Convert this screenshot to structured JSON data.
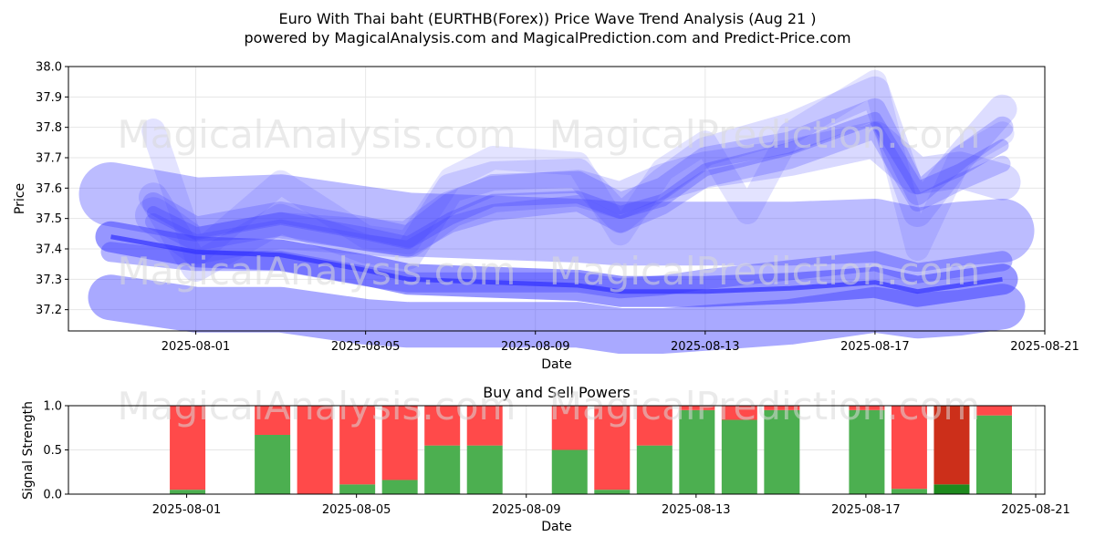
{
  "header": {
    "title": "Euro With Thai baht (EURTHB(Forex)) Price Wave Trend Analysis (Aug 21 )",
    "subtitle": "powered by MagicalAnalysis.com and MagicalPrediction.com and Predict-Price.com"
  },
  "watermarks": [
    "MagicalAnalysis.com",
    "MagicalPrediction.com"
  ],
  "chart_data": [
    {
      "type": "line",
      "title": "",
      "xlabel": "Date",
      "ylabel": "Price",
      "xlim": [
        "2025-07-29",
        "2025-08-21"
      ],
      "ylim": [
        37.13,
        38.0
      ],
      "x_ticks": [
        "2025-08-01",
        "2025-08-05",
        "2025-08-09",
        "2025-08-13",
        "2025-08-17",
        "2025-08-21"
      ],
      "y_ticks": [
        37.2,
        37.3,
        37.4,
        37.5,
        37.6,
        37.7,
        37.8,
        37.9,
        38.0
      ],
      "grid": true,
      "colors": {
        "wave": "#4040ff"
      },
      "series": [
        {
          "x": [
            "2025-07-30",
            "2025-08-01",
            "2025-08-03",
            "2025-08-05",
            "2025-08-06",
            "2025-08-10",
            "2025-08-11",
            "2025-08-12",
            "2025-08-13",
            "2025-08-15",
            "2025-08-17",
            "2025-08-18",
            "2025-08-19",
            "2025-08-20"
          ],
          "values": [
            37.24,
            37.2,
            37.2,
            37.16,
            37.15,
            37.15,
            37.13,
            37.13,
            37.14,
            37.16,
            37.2,
            37.18,
            37.19,
            37.21
          ]
        },
        {
          "x": [
            "2025-07-30",
            "2025-08-01",
            "2025-08-03",
            "2025-08-05",
            "2025-08-06",
            "2025-08-10",
            "2025-08-11",
            "2025-08-12",
            "2025-08-13",
            "2025-08-15",
            "2025-08-17",
            "2025-08-18",
            "2025-08-19",
            "2025-08-20"
          ],
          "values": [
            37.44,
            37.39,
            37.38,
            37.33,
            37.3,
            37.28,
            37.26,
            37.26,
            37.26,
            37.27,
            37.29,
            37.26,
            37.28,
            37.3
          ]
        },
        {
          "x": [
            "2025-07-30",
            "2025-08-01",
            "2025-08-03",
            "2025-08-05",
            "2025-08-06",
            "2025-08-10",
            "2025-08-11",
            "2025-08-12",
            "2025-08-13",
            "2025-08-15",
            "2025-08-17",
            "2025-08-18",
            "2025-08-19",
            "2025-08-20"
          ],
          "values": [
            37.39,
            37.36,
            37.36,
            37.31,
            37.29,
            37.29,
            37.27,
            37.28,
            37.3,
            37.33,
            37.36,
            37.32,
            37.34,
            37.36
          ]
        },
        {
          "x": [
            "2025-07-30",
            "2025-08-01",
            "2025-08-03",
            "2025-08-05",
            "2025-08-06",
            "2025-08-10",
            "2025-08-11",
            "2025-08-12",
            "2025-08-13",
            "2025-08-15",
            "2025-08-17",
            "2025-08-18",
            "2025-08-19",
            "2025-08-20"
          ],
          "values": [
            37.58,
            37.53,
            37.54,
            37.5,
            37.48,
            37.46,
            37.45,
            37.45,
            37.45,
            37.45,
            37.46,
            37.43,
            37.45,
            37.46
          ]
        },
        {
          "x": [
            "2025-07-31",
            "2025-08-01",
            "2025-08-03",
            "2025-08-05",
            "2025-08-06",
            "2025-08-07",
            "2025-08-08",
            "2025-08-10",
            "2025-08-11",
            "2025-08-12",
            "2025-08-13",
            "2025-08-15",
            "2025-08-17",
            "2025-08-18",
            "2025-08-19",
            "2025-08-20"
          ],
          "values": [
            37.52,
            37.45,
            37.5,
            37.45,
            37.42,
            37.5,
            37.56,
            37.57,
            37.52,
            37.56,
            37.66,
            37.73,
            37.83,
            37.6,
            37.66,
            37.74
          ]
        },
        {
          "x": [
            "2025-07-31",
            "2025-08-01",
            "2025-08-03",
            "2025-08-05",
            "2025-08-06",
            "2025-08-07",
            "2025-08-08",
            "2025-08-10",
            "2025-08-11",
            "2025-08-12",
            "2025-08-13",
            "2025-08-15",
            "2025-08-17",
            "2025-08-18",
            "2025-08-19",
            "2025-08-20"
          ],
          "values": [
            37.55,
            37.47,
            37.52,
            37.47,
            37.44,
            37.55,
            37.61,
            37.62,
            37.55,
            37.6,
            37.7,
            37.75,
            37.86,
            37.58,
            37.7,
            37.8
          ]
        },
        {
          "x": [
            "2025-07-31",
            "2025-08-01",
            "2025-08-03",
            "2025-08-05",
            "2025-08-06",
            "2025-08-07",
            "2025-08-08",
            "2025-08-10",
            "2025-08-11",
            "2025-08-12",
            "2025-08-13",
            "2025-08-15",
            "2025-08-17",
            "2025-08-18",
            "2025-08-19",
            "2025-08-20"
          ],
          "values": [
            37.49,
            37.42,
            37.47,
            37.42,
            37.4,
            37.48,
            37.52,
            37.55,
            37.48,
            37.54,
            37.63,
            37.69,
            37.79,
            37.55,
            37.62,
            37.68
          ]
        },
        {
          "x": [
            "2025-07-31",
            "2025-08-01",
            "2025-08-03",
            "2025-08-05",
            "2025-08-06",
            "2025-08-07",
            "2025-08-08",
            "2025-08-10",
            "2025-08-11",
            "2025-08-12",
            "2025-08-13",
            "2025-08-14",
            "2025-08-15",
            "2025-08-17",
            "2025-08-18",
            "2025-08-19",
            "2025-08-20"
          ],
          "values": [
            37.79,
            37.38,
            37.62,
            37.44,
            37.42,
            37.63,
            37.7,
            37.68,
            37.45,
            37.66,
            37.75,
            37.52,
            37.78,
            37.95,
            37.4,
            37.7,
            37.78
          ]
        },
        {
          "x": [
            "2025-07-31",
            "2025-08-01",
            "2025-08-03",
            "2025-08-05",
            "2025-08-06",
            "2025-08-07",
            "2025-08-08",
            "2025-08-10",
            "2025-08-11",
            "2025-08-12",
            "2025-08-13",
            "2025-08-15",
            "2025-08-17",
            "2025-08-18",
            "2025-08-19",
            "2025-08-20"
          ],
          "values": [
            37.57,
            37.34,
            37.5,
            37.4,
            37.38,
            37.6,
            37.64,
            37.65,
            37.5,
            37.62,
            37.72,
            37.8,
            37.92,
            37.52,
            37.7,
            37.86
          ]
        },
        {
          "x": [
            "2025-07-31",
            "2025-08-01",
            "2025-08-03",
            "2025-08-05",
            "2025-08-06",
            "2025-08-07",
            "2025-08-08",
            "2025-08-10",
            "2025-08-11",
            "2025-08-12",
            "2025-08-13",
            "2025-08-15",
            "2025-08-17",
            "2025-08-18",
            "2025-08-19",
            "2025-08-20"
          ],
          "values": [
            37.51,
            37.41,
            37.46,
            37.44,
            37.43,
            37.53,
            37.58,
            37.6,
            37.56,
            37.62,
            37.66,
            37.7,
            37.76,
            37.64,
            37.66,
            37.62
          ]
        }
      ]
    },
    {
      "type": "bar",
      "title": "Buy and Sell Powers",
      "xlabel": "Date",
      "ylabel": "Signal Strength",
      "ylim": [
        0,
        1.0
      ],
      "y_ticks": [
        0.0,
        0.5,
        1.0
      ],
      "x_ticks": [
        "2025-08-01",
        "2025-08-05",
        "2025-08-09",
        "2025-08-13",
        "2025-08-17",
        "2025-08-21"
      ],
      "grid": true,
      "colors": {
        "buy": "#4caf50",
        "sell": "#ff4a4a",
        "buy_strong": "#1e8a1e",
        "sell_strong": "#cc2f1a"
      },
      "categories": [
        "2025-08-01",
        "2025-08-03",
        "2025-08-04",
        "2025-08-05",
        "2025-08-06",
        "2025-08-07",
        "2025-08-08",
        "2025-08-10",
        "2025-08-11",
        "2025-08-12",
        "2025-08-13",
        "2025-08-14",
        "2025-08-15",
        "2025-08-17",
        "2025-08-18",
        "2025-08-19",
        "2025-08-20"
      ],
      "series": [
        {
          "name": "buy",
          "values": [
            0.05,
            0.67,
            0.0,
            0.11,
            0.16,
            0.55,
            0.55,
            0.5,
            0.05,
            0.55,
            0.95,
            0.84,
            0.95,
            0.95,
            0.06,
            0.11,
            0.89
          ]
        },
        {
          "name": "sell",
          "values": [
            0.95,
            0.33,
            1.0,
            0.89,
            0.84,
            0.45,
            0.45,
            0.5,
            0.95,
            0.45,
            0.05,
            0.16,
            0.05,
            0.05,
            0.94,
            0.89,
            0.11
          ]
        }
      ],
      "strong": [
        false,
        false,
        false,
        false,
        false,
        false,
        false,
        false,
        false,
        false,
        false,
        false,
        false,
        false,
        false,
        true,
        false
      ]
    }
  ]
}
